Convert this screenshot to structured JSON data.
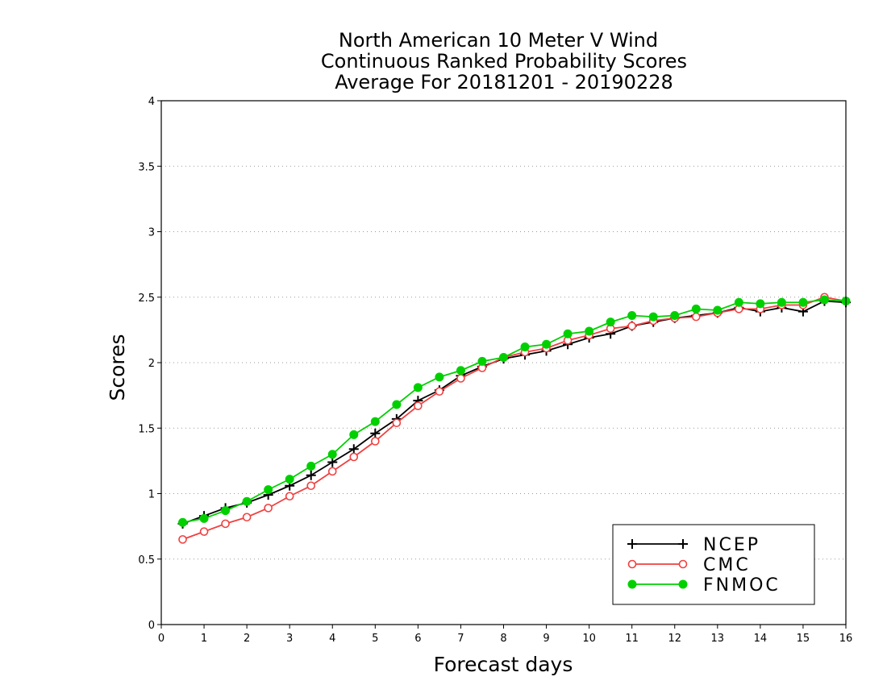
{
  "chart_data": {
    "type": "line",
    "title": [
      "North American 10 Meter V Wind",
      "Continuous Ranked Probability Scores",
      "Average For 20181201 - 20190228"
    ],
    "xlabel": "Forecast days",
    "ylabel": "Scores",
    "xlim": [
      0,
      16
    ],
    "ylim": [
      0,
      4
    ],
    "xticks": [
      "0",
      "1",
      "2",
      "3",
      "4",
      "5",
      "6",
      "7",
      "8",
      "9",
      "10",
      "11",
      "12",
      "13",
      "14",
      "15",
      "16"
    ],
    "yticks": [
      "0",
      "0.5",
      "1",
      "1.5",
      "2",
      "2.5",
      "3",
      "3.5",
      "4"
    ],
    "grid": "horizontal dotted",
    "legend_position": "bottom-right",
    "x": [
      0.5,
      1,
      1.5,
      2,
      2.5,
      3,
      3.5,
      4,
      4.5,
      5,
      5.5,
      6,
      6.5,
      7,
      7.5,
      8,
      8.5,
      9,
      9.5,
      10,
      10.5,
      11,
      11.5,
      12,
      12.5,
      13,
      13.5,
      14,
      14.5,
      15,
      15.5,
      16
    ],
    "series": [
      {
        "name": "NCEP",
        "color": "#000000",
        "marker": "plus",
        "values": [
          0.77,
          0.83,
          0.89,
          0.93,
          0.99,
          1.06,
          1.14,
          1.24,
          1.34,
          1.46,
          1.57,
          1.71,
          1.79,
          1.9,
          1.97,
          2.03,
          2.06,
          2.09,
          2.14,
          2.19,
          2.22,
          2.28,
          2.31,
          2.34,
          2.36,
          2.38,
          2.42,
          2.39,
          2.42,
          2.39,
          2.47,
          2.46
        ]
      },
      {
        "name": "CMC",
        "color": "#f04040",
        "marker": "open-circle",
        "values": [
          0.65,
          0.71,
          0.77,
          0.82,
          0.89,
          0.98,
          1.06,
          1.17,
          1.28,
          1.4,
          1.54,
          1.67,
          1.78,
          1.88,
          1.96,
          2.04,
          2.08,
          2.11,
          2.17,
          2.21,
          2.26,
          2.28,
          2.32,
          2.34,
          2.35,
          2.38,
          2.41,
          2.41,
          2.44,
          2.44,
          2.5,
          2.47
        ]
      },
      {
        "name": "FNMOC",
        "color": "#00d000",
        "marker": "filled-circle",
        "values": [
          0.78,
          0.81,
          0.87,
          0.94,
          1.03,
          1.11,
          1.21,
          1.3,
          1.45,
          1.55,
          1.68,
          1.81,
          1.89,
          1.94,
          2.01,
          2.04,
          2.12,
          2.14,
          2.22,
          2.24,
          2.31,
          2.36,
          2.35,
          2.36,
          2.41,
          2.4,
          2.46,
          2.45,
          2.46,
          2.46,
          2.48,
          2.47
        ]
      }
    ]
  }
}
